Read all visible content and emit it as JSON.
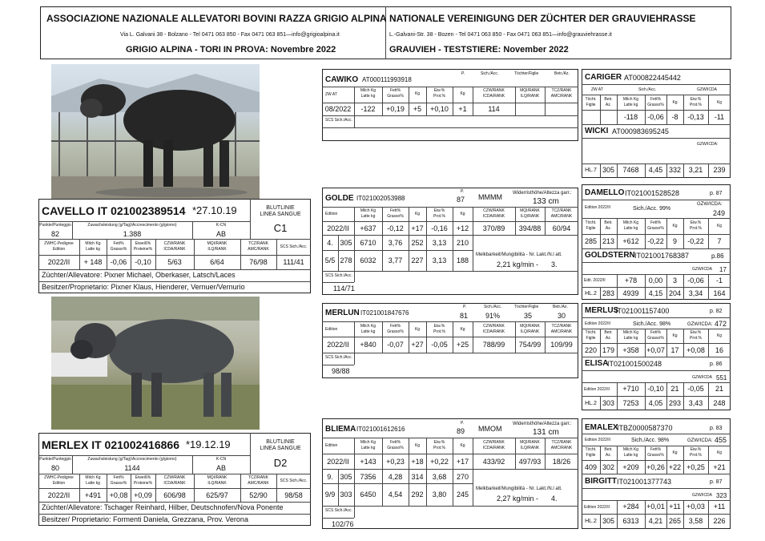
{
  "header": {
    "it_title": "ASSOCIAZIONE NAZIONALE ALLEVATORI BOVINI RAZZA GRIGIO ALPINA",
    "de_title": "NATIONALE VEREINIGUNG DER ZÜCHTER DER GRAUVIEHRASSE",
    "it_address": "Via L. Galvani 38 - Bolzano - Tel 0471 063 850 - Fax 0471 063 851—info@grigioalpina.it",
    "de_address": "L.-Galvani-Str. 38 - Bozen - Tel 0471 063 850 - Fax 0471 063 851—info@grauviehrasse.it",
    "it_sub": "GRIGIO ALPINA - TORI IN PROVA: Novembre 2022",
    "de_sub": "GRAUVIEH - TESTSTIERE: November 2022"
  },
  "hdr": {
    "punkte": "Punkte/Punteggio",
    "zuwachs": "Zuwachsleistung (g/Tag)/Accrescimento (g/giorno)",
    "kcn": "K-CN",
    "blutlinie": "BLUTLINIE",
    "linea": "LINEA SANGUE",
    "zwhc": "ZWHC-Pedigree",
    "edition": "Edition",
    "milchkg": "Milch Kg",
    "lattekg": "Latte kg",
    "fett": "Fett%",
    "grasso": "Grasso%",
    "eiweiss": "Eiweiß%",
    "proteine": "Proteine%",
    "czw": "CZW/RANK",
    "icda": "ICDA/RANK",
    "mqi": "MQI/RANK",
    "ilq": "ILQ/RANK",
    "tcz": "TCZ/RANK",
    "amc": "AMC/RANK",
    "scs": "SCS Sich./Acc.",
    "zwat": "ZW AT",
    "kg": "Kg",
    "eiwp": "Eiw.%",
    "protp": "Prot.%",
    "p": "P.",
    "sich": "Sich./Acc.",
    "toechter": "Töchter/Figlie",
    "betr": "Betr./Az.",
    "toecht": "Töcht.",
    "figlie": "Figlie",
    "betr2": "Betr.",
    "az": "Az.",
    "fettp": "Fett%",
    "grassop": "Grasso%",
    "scs2": "SCS Sich./Acc.",
    "wider": "Widerristhöhe/Altezza garr.:",
    "melk": "Melkbarkeit/Mungibilità - Nr. Lakt./N.l att.",
    "gzw": "GZW/ICDA:",
    "editionalt": "Edition 2022/II",
    "gzwicda": "GZW/ICDA"
  },
  "cavello": {
    "name": "CAVELLO IT 021002389514",
    "born": "*27.10.19",
    "punkte": "82",
    "zuwachs": "1.388",
    "kcn": "AB",
    "linea": "C1",
    "ed": "2022/II",
    "milch": "+ 148",
    "fett": "-0,06",
    "eiw": "-0,10",
    "czw": "5/63",
    "mqi": "6/64",
    "tcz": "76/98",
    "scs": "111/41",
    "zuchter": "Züchter/Allevatore: Pixner Michael, Oberkaser, Latsch/Laces",
    "besitzer": "Besitzer/Proprietario: Pixner Klaus, Hienderer, Vernuer/Vernurio"
  },
  "merlex": {
    "name": "MERLEX IT 021002416866",
    "born": "*19.12.19",
    "punkte": "80",
    "zuwachs": "1144",
    "kcn": "AB",
    "linea": "D2",
    "ed": "2022/II",
    "milch": "+491",
    "fett": "+0,08",
    "eiw": "+0,09",
    "czw": "606/98",
    "mqi": "625/97",
    "tcz": "52/90",
    "scs": "98/58",
    "zuchter": "Züchter/Allevatore: Tschager Reinhard, Hilber, Deutschnofen/Nova Ponente",
    "besitzer": "Besitzer/ Proprietario: Formenti Daniela, Grezzana, Prov. Verona"
  },
  "cawiko": {
    "name": "CAWIKO",
    "id": "AT000111993918",
    "ed": "08/2022",
    "milch": "-122",
    "fett": "+0,19",
    "fkg": "+5",
    "eiw": "+0,10",
    "ekg": "+1",
    "czw": "114"
  },
  "golde": {
    "name": "GOLDE",
    "id": "IT021002053988",
    "p": "87",
    "mmmm": "MMMM",
    "height": "133 cm",
    "ed": "2022/II",
    "milch": "+637",
    "fett": "-0,12",
    "fkg": "+17",
    "eiw": "-0,16",
    "ekg": "+12",
    "czw": "370/89",
    "mqi": "394/88",
    "tcz": "60/94",
    "l1a": "4.",
    "l1b": "305",
    "l1c": "6710",
    "l1d": "3,76",
    "l1e": "252",
    "l1f": "3,13",
    "l1g": "210",
    "l2a": "5/5",
    "l2b": "278",
    "l2c": "6032",
    "l2d": "3,77",
    "l2e": "227",
    "l2f": "3,13",
    "l2g": "188",
    "melk": "2,21 kg/min -",
    "lakt": "3.",
    "scs": "114/71"
  },
  "merlun": {
    "name": "MERLUN",
    "id": "IT021001847676",
    "p": "81",
    "sich": "91%",
    "toechter": "35",
    "betr": "30",
    "ed": "2022/II",
    "milch": "+840",
    "fett": "-0,07",
    "fkg": "+27",
    "eiw": "-0,05",
    "ekg": "+25",
    "czw": "788/99",
    "mqi": "754/99",
    "tcz": "109/99",
    "scs": "98/88"
  },
  "bliema": {
    "name": "BLIEMA",
    "id": "IT021001612616",
    "p": "89",
    "mmom": "MMOM",
    "height": "131 cm",
    "ed": "2022/II",
    "milch": "+143",
    "fett": "+0,23",
    "fkg": "+18",
    "eiw": "+0,22",
    "ekg": "+17",
    "czw": "433/92",
    "mqi": "497/93",
    "tcz": "18/26",
    "l1a": "9.",
    "l1b": "305",
    "l1c": "7356",
    "l1d": "4,28",
    "l1e": "314",
    "l1f": "3,68",
    "l1g": "270",
    "l2a": "9/9",
    "l2b": "303",
    "l2c": "6450",
    "l2d": "4,54",
    "l2e": "292",
    "l2f": "3,80",
    "l2g": "245",
    "melk": "2,27 kg/min -",
    "lakt": "4.",
    "scs": "102/76"
  },
  "cariger": {
    "name": "CARIGER",
    "id": "AT000822445442",
    "milch": "-118",
    "fett": "-0,06",
    "fkg": "-8",
    "eiw": "-0,13",
    "ekg": "-11"
  },
  "wicki": {
    "name": "WICKI",
    "id": "AT000983695245",
    "hl": "HL.7",
    "a": "305",
    "b": "7468",
    "c": "4,45",
    "d": "332",
    "e": "3,21",
    "f": "239"
  },
  "damello": {
    "name": "DAMELLO",
    "id": "IT021001528528",
    "p": "p. 87",
    "sich": "Sich./Acc. 99%",
    "gzw": "249",
    "t": "285",
    "b": "213",
    "milch": "+612",
    "fett": "-0,22",
    "fkg": "9",
    "eiw": "-0,22",
    "ekg": "7"
  },
  "goldstern": {
    "name": "GOLDSTERN",
    "id": "IT021001768387",
    "p": "p.86",
    "gzw": "17",
    "ed": "Edit. 2022/II",
    "milch": "+78",
    "fett": "0,00",
    "fkg": "3",
    "eiw": "-0,06",
    "ekg": "-1",
    "hl": "HL.2",
    "a": "283",
    "b": "4939",
    "c": "4,15",
    "d": "204",
    "e": "3,34",
    "f": "164"
  },
  "merlus": {
    "name": "MERLUS",
    "id": "IT021001157400",
    "p": "p. 82",
    "ed": "Edition 2022/II",
    "sich": "Sich./Acc. 98%",
    "gzw": "472",
    "t": "220",
    "b": "179",
    "milch": "+358",
    "fett": "+0,07",
    "fkg": "17",
    "eiw": "+0,08",
    "ekg": "16"
  },
  "elisa": {
    "name": "ELISA",
    "id": "IT021001500248",
    "p": "p. 86",
    "gzw": "551",
    "ed": "Edition 2022/II",
    "milch": "+710",
    "fett": "-0,10",
    "fkg": "21",
    "eiw": "-0,05",
    "ekg": "21",
    "hl": "HL.2",
    "a": "303",
    "b": "7253",
    "c": "4,05",
    "d": "293",
    "e": "3,43",
    "f": "248"
  },
  "emalex": {
    "name": "EMALEX",
    "id": "ITBZ0000587370",
    "p": "p. 83",
    "ed": "Edition 2022/II",
    "sich": "Sich./Acc. 98%",
    "gzw": "455",
    "t": "409",
    "b": "302",
    "milch": "+209",
    "fett": "+0,26",
    "fkg": "+22",
    "eiw": "+0,25",
    "ekg": "+21"
  },
  "birgitt": {
    "name": "BIRGITT",
    "id": "IT021001377743",
    "p": "p. 87",
    "gzw": "323",
    "ed": "Edition 2022/II",
    "milch": "+284",
    "fett": "+0,01",
    "fkg": "+11",
    "eiw": "+0,03",
    "ekg": "+11",
    "hl": "HL.2",
    "a": "305",
    "b": "6313",
    "c": "4,21",
    "d": "265",
    "e": "3,58",
    "f": "226"
  }
}
